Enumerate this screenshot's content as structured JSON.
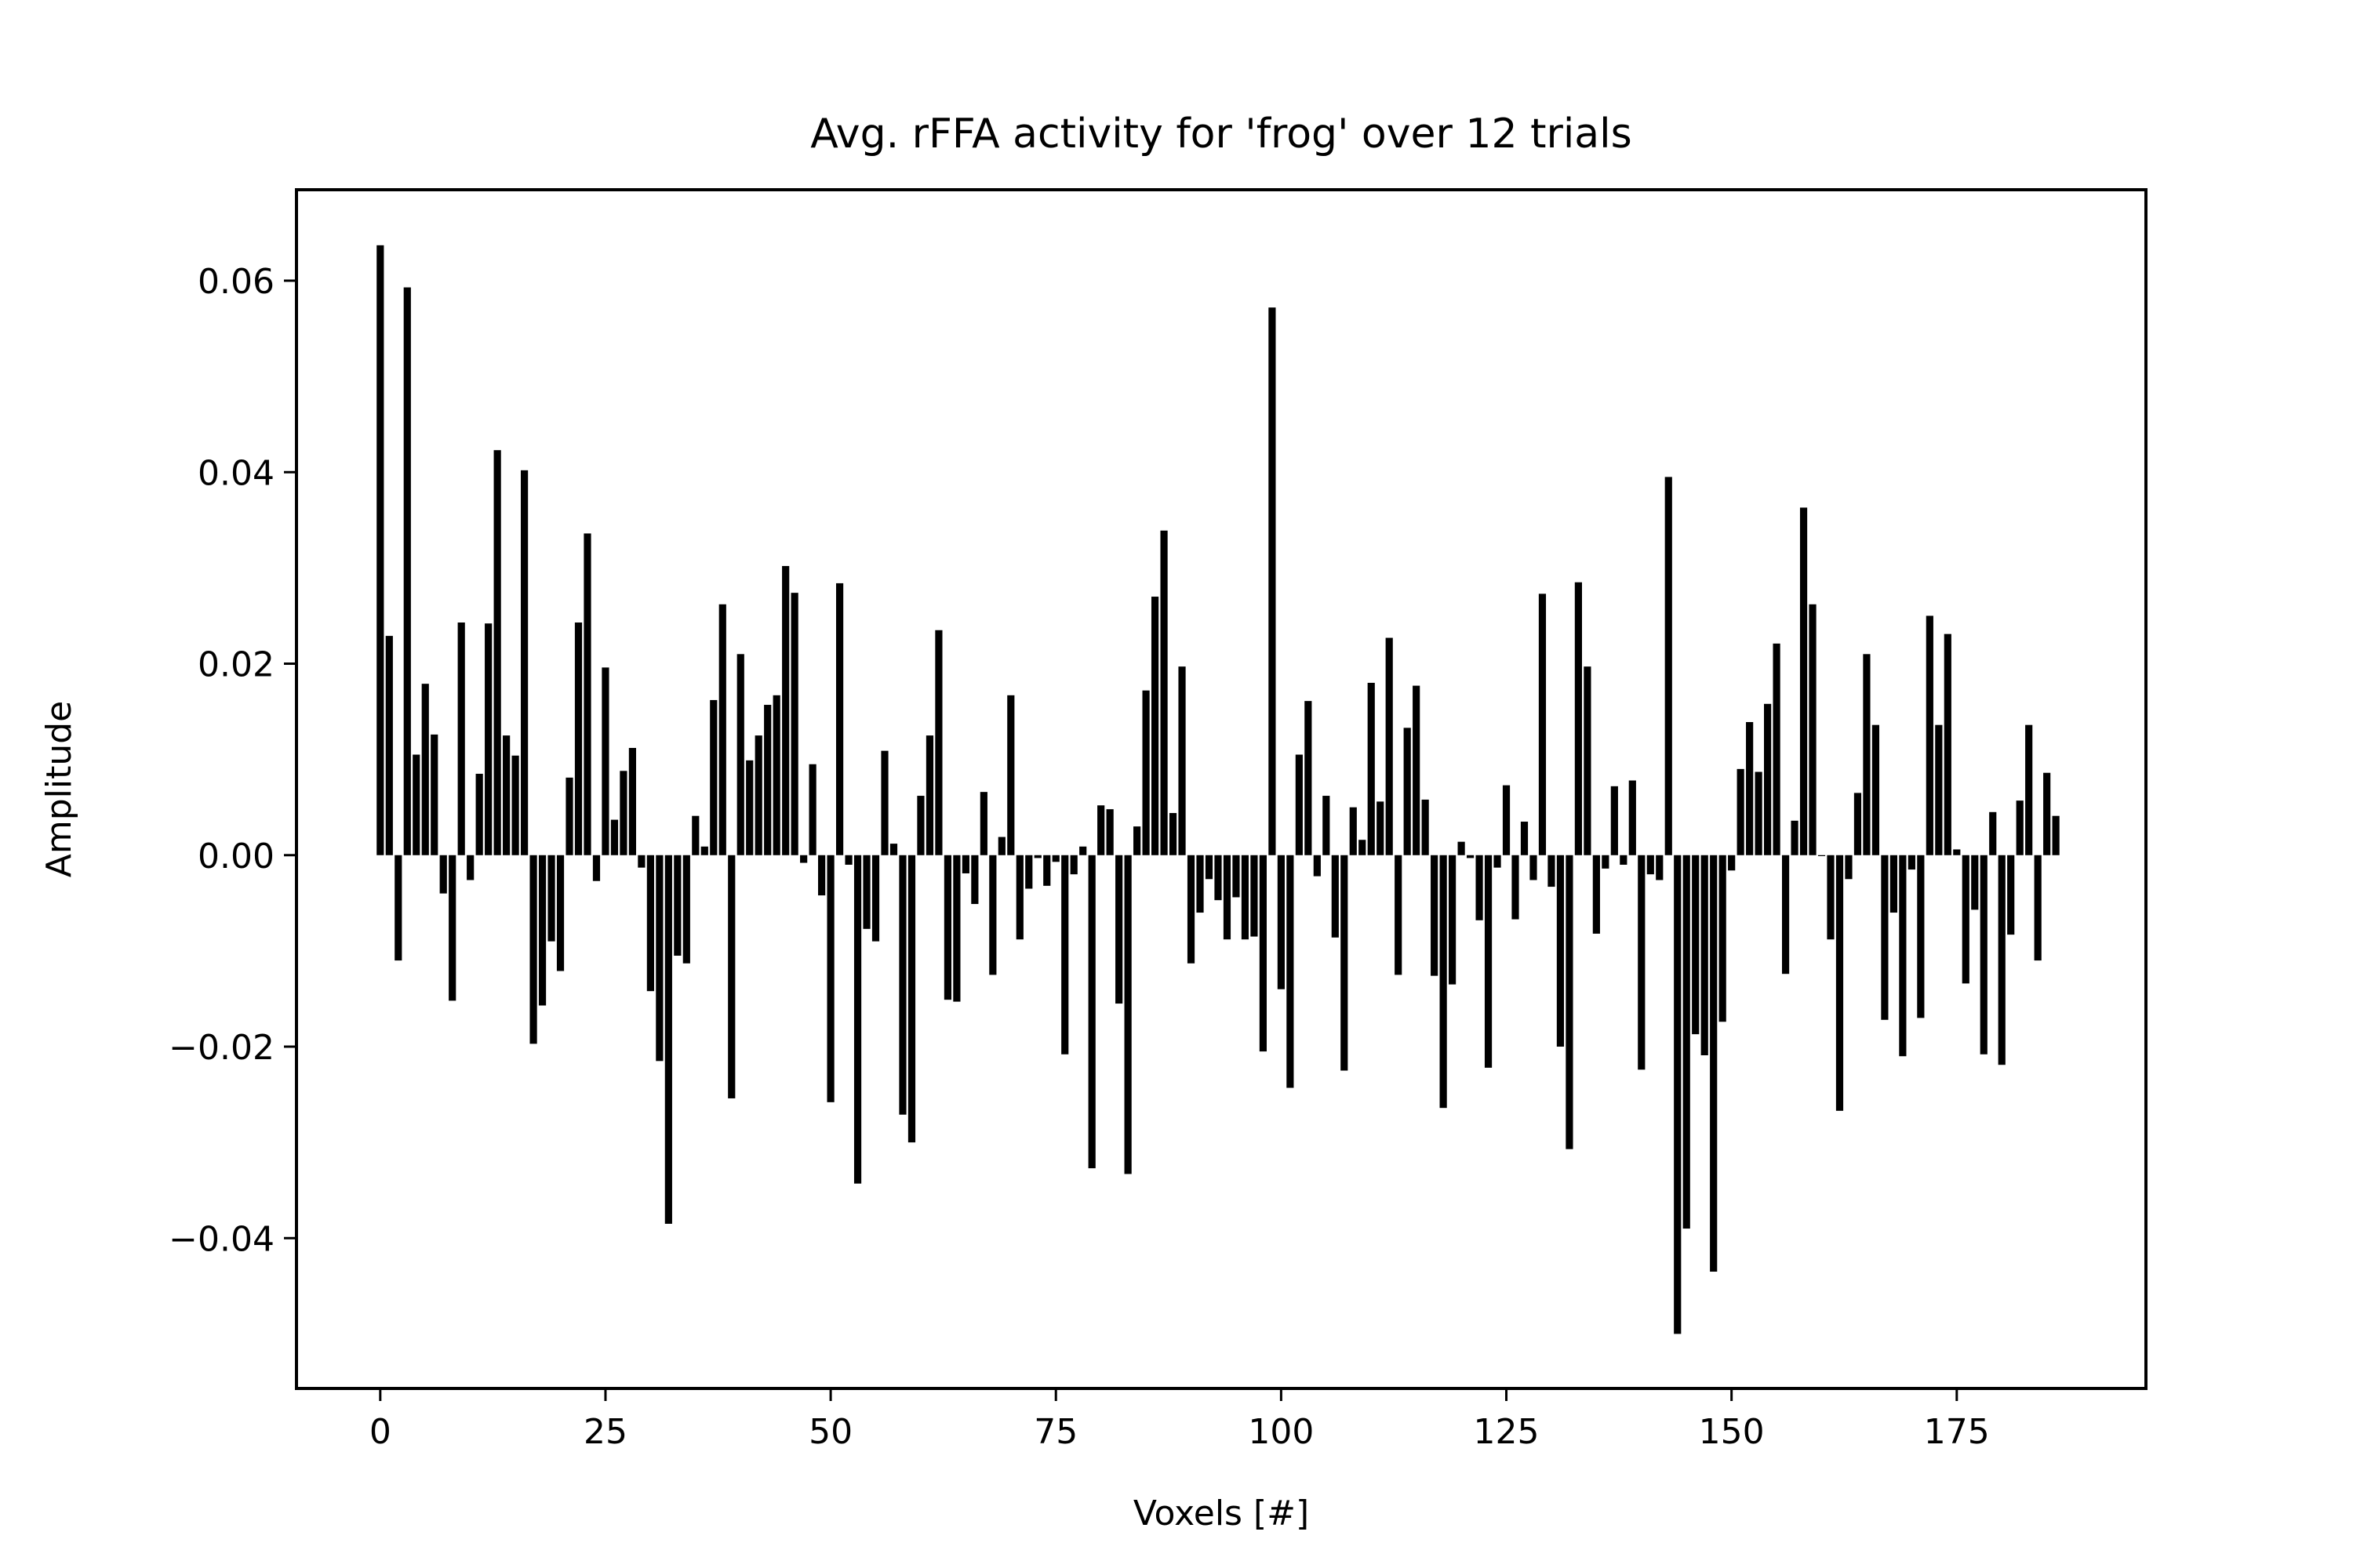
{
  "chart_data": {
    "type": "bar",
    "title": "Avg. rFFA activity for 'frog' over 12 trials",
    "xlabel": "Voxels [#]",
    "ylabel": "Amplitude",
    "xlim": [
      -9.3,
      196
    ],
    "ylim": [
      -0.0557,
      0.0695
    ],
    "xticks": [
      0,
      25,
      50,
      75,
      100,
      125,
      150,
      175
    ],
    "xtick_labels": [
      "0",
      "25",
      "50",
      "75",
      "100",
      "125",
      "150",
      "175"
    ],
    "yticks": [
      0.06,
      0.04,
      0.02,
      0.0,
      -0.02,
      -0.04
    ],
    "ytick_labels": [
      "0.06",
      "0.04",
      "0.02",
      "0.00",
      "−0.02",
      "−0.04"
    ],
    "grid": false,
    "legend": "none",
    "bar_color": "#000000",
    "x": [
      0,
      1,
      2,
      3,
      4,
      5,
      6,
      7,
      8,
      9,
      10,
      11,
      12,
      13,
      14,
      15,
      16,
      17,
      18,
      19,
      20,
      21,
      22,
      23,
      24,
      25,
      26,
      27,
      28,
      29,
      30,
      31,
      32,
      33,
      34,
      35,
      36,
      37,
      38,
      39,
      40,
      41,
      42,
      43,
      44,
      45,
      46,
      47,
      48,
      49,
      50,
      51,
      52,
      53,
      54,
      55,
      56,
      57,
      58,
      59,
      60,
      61,
      62,
      63,
      64,
      65,
      66,
      67,
      68,
      69,
      70,
      71,
      72,
      73,
      74,
      75,
      76,
      77,
      78,
      79,
      80,
      81,
      82,
      83,
      84,
      85,
      86,
      87,
      88,
      89,
      90,
      91,
      92,
      93,
      94,
      95,
      96,
      97,
      98,
      99,
      100,
      101,
      102,
      103,
      104,
      105,
      106,
      107,
      108,
      109,
      110,
      111,
      112,
      113,
      114,
      115,
      116,
      117,
      118,
      119,
      120,
      121,
      122,
      123,
      124,
      125,
      126,
      127,
      128,
      129,
      130,
      131,
      132,
      133,
      134,
      135,
      136,
      137,
      138,
      139,
      140,
      141,
      142,
      143,
      144,
      145,
      146,
      147,
      148,
      149,
      150,
      151,
      152,
      153,
      154,
      155,
      156,
      157,
      158,
      159,
      160,
      161,
      162,
      163,
      164,
      165,
      166,
      167,
      168,
      169,
      170,
      171,
      172,
      173,
      174,
      175,
      176,
      177,
      178,
      179,
      180,
      181,
      182,
      183,
      184,
      185,
      186
    ],
    "values": [
      0.0637,
      0.0229,
      -0.011,
      0.0593,
      0.0105,
      0.0179,
      0.0126,
      -0.004,
      -0.0152,
      0.0243,
      -0.0026,
      0.0085,
      0.0242,
      0.0423,
      0.0125,
      0.0104,
      0.0402,
      -0.0197,
      -0.0157,
      -0.009,
      -0.0121,
      0.0081,
      0.0243,
      0.0336,
      -0.0027,
      0.0196,
      0.0037,
      0.0088,
      0.0112,
      -0.0013,
      -0.0142,
      -0.0215,
      -0.0385,
      -0.0105,
      -0.0113,
      0.0041,
      0.0009,
      0.0162,
      0.0262,
      -0.0254,
      0.021,
      0.0099,
      0.0125,
      0.0157,
      0.0167,
      0.0302,
      0.0274,
      -0.0008,
      0.0095,
      -0.0042,
      -0.0258,
      0.0284,
      -0.001,
      -0.0343,
      -0.0077,
      -0.009,
      0.0109,
      0.0012,
      -0.0271,
      -0.03,
      0.0062,
      0.0125,
      0.0235,
      -0.0151,
      -0.0153,
      -0.0019,
      -0.0051,
      0.0066,
      -0.0125,
      0.0019,
      0.0167,
      -0.0088,
      -0.0035,
      -0.0003,
      -0.0032,
      -0.0007,
      -0.0208,
      -0.002,
      0.0009,
      -0.0327,
      0.0052,
      0.0048,
      -0.0155,
      -0.0333,
      0.003,
      0.0172,
      0.027,
      0.0339,
      0.0044,
      0.0197,
      -0.0113,
      -0.006,
      -0.0025,
      -0.0047,
      -0.0088,
      -0.0044,
      -0.0088,
      -0.0085,
      -0.0205,
      0.0572,
      -0.014,
      -0.0243,
      0.0105,
      0.0161,
      -0.0022,
      0.0062,
      -0.0086,
      -0.0225,
      0.005,
      0.0016,
      0.018,
      0.0056,
      0.0227,
      -0.0125,
      0.0133,
      0.0177,
      0.0058,
      -0.0126,
      -0.0264,
      -0.0135,
      0.0014,
      -0.0003,
      -0.0068,
      -0.0222,
      -0.0013,
      0.0073,
      -0.0067,
      0.0035,
      -0.0026,
      0.0273,
      -0.0033,
      -0.02,
      -0.0307,
      0.0285,
      0.0197,
      -0.0082,
      -0.0014,
      0.0072,
      -0.001,
      0.0078,
      -0.0224,
      -0.002,
      -0.0026,
      0.0395,
      -0.05,
      -0.039,
      -0.0187,
      -0.0209,
      -0.0435,
      -0.0174,
      -0.0016,
      0.009,
      0.0139,
      0.0087,
      0.0158,
      0.0221,
      -0.0124,
      0.0036,
      0.0363,
      0.0262,
      -0.0001,
      -0.0088,
      -0.0267,
      -0.0025,
      0.0065,
      0.021,
      0.0136,
      -0.0172,
      -0.006,
      -0.021,
      -0.0015,
      -0.017,
      0.025,
      0.0136,
      0.0231,
      0.0006,
      -0.0134,
      -0.0057,
      -0.0208,
      0.0045,
      -0.0219,
      -0.0083,
      0.0057,
      0.0136,
      -0.011,
      0.0086,
      0.0041
    ]
  }
}
